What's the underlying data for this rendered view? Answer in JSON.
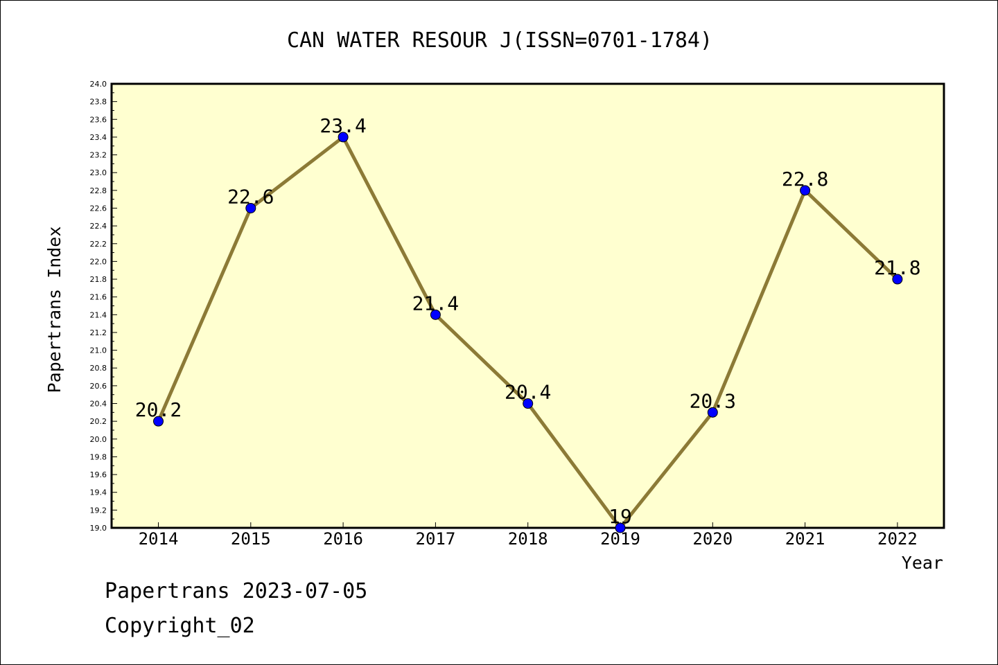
{
  "chart_data": {
    "type": "line",
    "title": "CAN WATER RESOUR J(ISSN=0701-1784)",
    "xlabel": "Year",
    "ylabel": "Papertrans Index",
    "categories": [
      "2014",
      "2015",
      "2016",
      "2017",
      "2018",
      "2019",
      "2020",
      "2021",
      "2022"
    ],
    "series": [
      {
        "values": [
          20.2,
          22.6,
          23.4,
          21.4,
          20.4,
          19,
          20.3,
          22.8,
          21.8
        ],
        "labels": [
          "20.2",
          "22.6",
          "23.4",
          "21.4",
          "20.4",
          "19",
          "20.3",
          "22.8",
          "21.8"
        ]
      }
    ],
    "ylim": [
      19.0,
      24.0
    ],
    "yticks": [
      "19.0",
      "19.2",
      "19.4",
      "19.6",
      "19.8",
      "20.0",
      "20.2",
      "20.4",
      "20.6",
      "20.8",
      "21.0",
      "21.2",
      "21.4",
      "21.6",
      "21.8",
      "22.0",
      "22.2",
      "22.4",
      "22.6",
      "22.8",
      "23.0",
      "23.2",
      "23.4",
      "23.6",
      "23.8",
      "24.0"
    ],
    "grid": false,
    "colors": {
      "plot_background": "#ffffd0",
      "line": "#8c7a36",
      "marker": "#0000ff",
      "axis": "#000000"
    }
  },
  "footer": {
    "date_line": "Papertrans 2023-07-05",
    "copyright": "Copyright_02"
  }
}
